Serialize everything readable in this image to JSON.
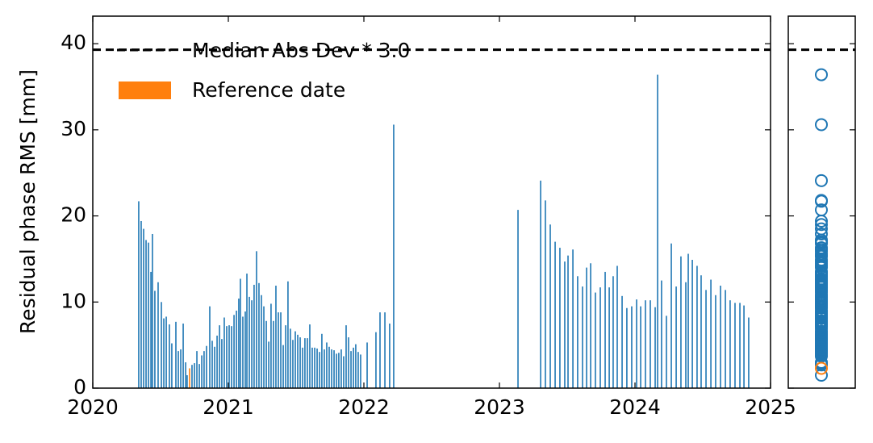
{
  "chart_data": {
    "type": "bar",
    "ylabel": "Residual phase RMS [mm]",
    "xlim": [
      2020,
      2025
    ],
    "xticks": [
      2020,
      2021,
      2022,
      2023,
      2024,
      2025
    ],
    "ylim": [
      0,
      43.2
    ],
    "yticks": [
      0,
      10,
      20,
      30,
      40
    ],
    "color": "#1f77b4",
    "x": [
      2020.339,
      2020.357,
      2020.375,
      2020.393,
      2020.411,
      2020.429,
      2020.44,
      2020.458,
      2020.482,
      2020.506,
      2020.524,
      2020.542,
      2020.565,
      2020.583,
      2020.613,
      2020.631,
      2020.649,
      2020.667,
      2020.685,
      2020.696,
      2020.732,
      2020.75,
      2020.768,
      2020.786,
      2020.804,
      2020.821,
      2020.839,
      2020.863,
      2020.881,
      2020.899,
      2020.917,
      2020.935,
      2020.952,
      2020.97,
      2020.988,
      2021.006,
      2021.024,
      2021.042,
      2021.06,
      2021.077,
      2021.089,
      2021.107,
      2021.125,
      2021.137,
      2021.155,
      2021.173,
      2021.19,
      2021.208,
      2021.226,
      2021.244,
      2021.262,
      2021.28,
      2021.298,
      2021.315,
      2021.333,
      2021.351,
      2021.369,
      2021.387,
      2021.405,
      2021.423,
      2021.44,
      2021.458,
      2021.476,
      2021.494,
      2021.512,
      2021.53,
      2021.548,
      2021.565,
      2021.583,
      2021.601,
      2021.619,
      2021.637,
      2021.655,
      2021.673,
      2021.69,
      2021.708,
      2021.726,
      2021.744,
      2021.762,
      2021.78,
      2021.798,
      2021.815,
      2021.833,
      2021.851,
      2021.869,
      2021.887,
      2021.905,
      2021.923,
      2021.94,
      2021.958,
      2021.976,
      2022.024,
      2022.089,
      2022.119,
      2022.155,
      2022.19,
      2022.22,
      2023.137,
      2023.304,
      2023.339,
      2023.375,
      2023.411,
      2023.446,
      2023.482,
      2023.506,
      2023.542,
      2023.577,
      2023.613,
      2023.643,
      2023.673,
      2023.708,
      2023.744,
      2023.78,
      2023.81,
      2023.839,
      2023.869,
      2023.905,
      2023.94,
      2023.976,
      2024.012,
      2024.042,
      2024.077,
      2024.113,
      2024.149,
      2024.167,
      2024.196,
      2024.232,
      2024.268,
      2024.304,
      2024.339,
      2024.375,
      2024.393,
      2024.423,
      2024.458,
      2024.488,
      2024.524,
      2024.56,
      2024.595,
      2024.631,
      2024.667,
      2024.702,
      2024.738,
      2024.774,
      2024.804,
      2024.839
    ],
    "values": [
      21.7,
      19.4,
      18.5,
      17.2,
      16.9,
      13.5,
      17.9,
      11.3,
      12.3,
      10.0,
      8.1,
      8.3,
      7.4,
      5.2,
      7.7,
      4.3,
      4.5,
      7.5,
      3.0,
      1.5,
      2.7,
      2.9,
      4.3,
      2.8,
      3.8,
      4.3,
      4.9,
      9.5,
      5.5,
      4.8,
      6.1,
      7.3,
      5.7,
      8.2,
      7.2,
      7.3,
      7.2,
      8.5,
      9.0,
      10.4,
      12.7,
      8.3,
      8.9,
      13.3,
      10.6,
      10.2,
      12.0,
      15.9,
      12.2,
      10.8,
      9.5,
      7.8,
      5.4,
      9.8,
      7.8,
      11.9,
      8.8,
      8.8,
      5.0,
      7.3,
      12.4,
      6.9,
      5.6,
      6.6,
      6.2,
      5.9,
      4.7,
      5.8,
      5.8,
      7.4,
      4.7,
      4.7,
      4.6,
      4.2,
      6.3,
      4.5,
      5.3,
      4.8,
      4.5,
      4.4,
      4.0,
      4.1,
      4.5,
      3.7,
      7.3,
      5.9,
      4.3,
      4.7,
      5.1,
      4.2,
      3.9,
      5.3,
      6.5,
      8.8,
      8.8,
      7.5,
      30.6,
      20.7,
      24.1,
      21.8,
      19.0,
      17.0,
      16.3,
      14.7,
      15.4,
      16.1,
      13.0,
      11.8,
      14.0,
      14.5,
      11.1,
      11.7,
      13.5,
      11.7,
      13.0,
      14.2,
      10.7,
      9.3,
      9.5,
      10.3,
      9.5,
      10.2,
      10.2,
      9.4,
      36.4,
      12.5,
      8.4,
      16.8,
      11.8,
      15.3,
      12.3,
      15.6,
      14.9,
      14.2,
      13.1,
      11.4,
      12.6,
      10.8,
      11.9,
      11.4,
      10.2,
      9.9,
      9.9,
      9.6,
      8.2
    ],
    "reference": {
      "name": "Reference date",
      "x": 2020.714,
      "value": 2.3,
      "color": "#ff7f0e"
    },
    "threshold": {
      "name": "Median Abs Dev * 3.0",
      "value": 39.3,
      "color": "#000000"
    }
  }
}
